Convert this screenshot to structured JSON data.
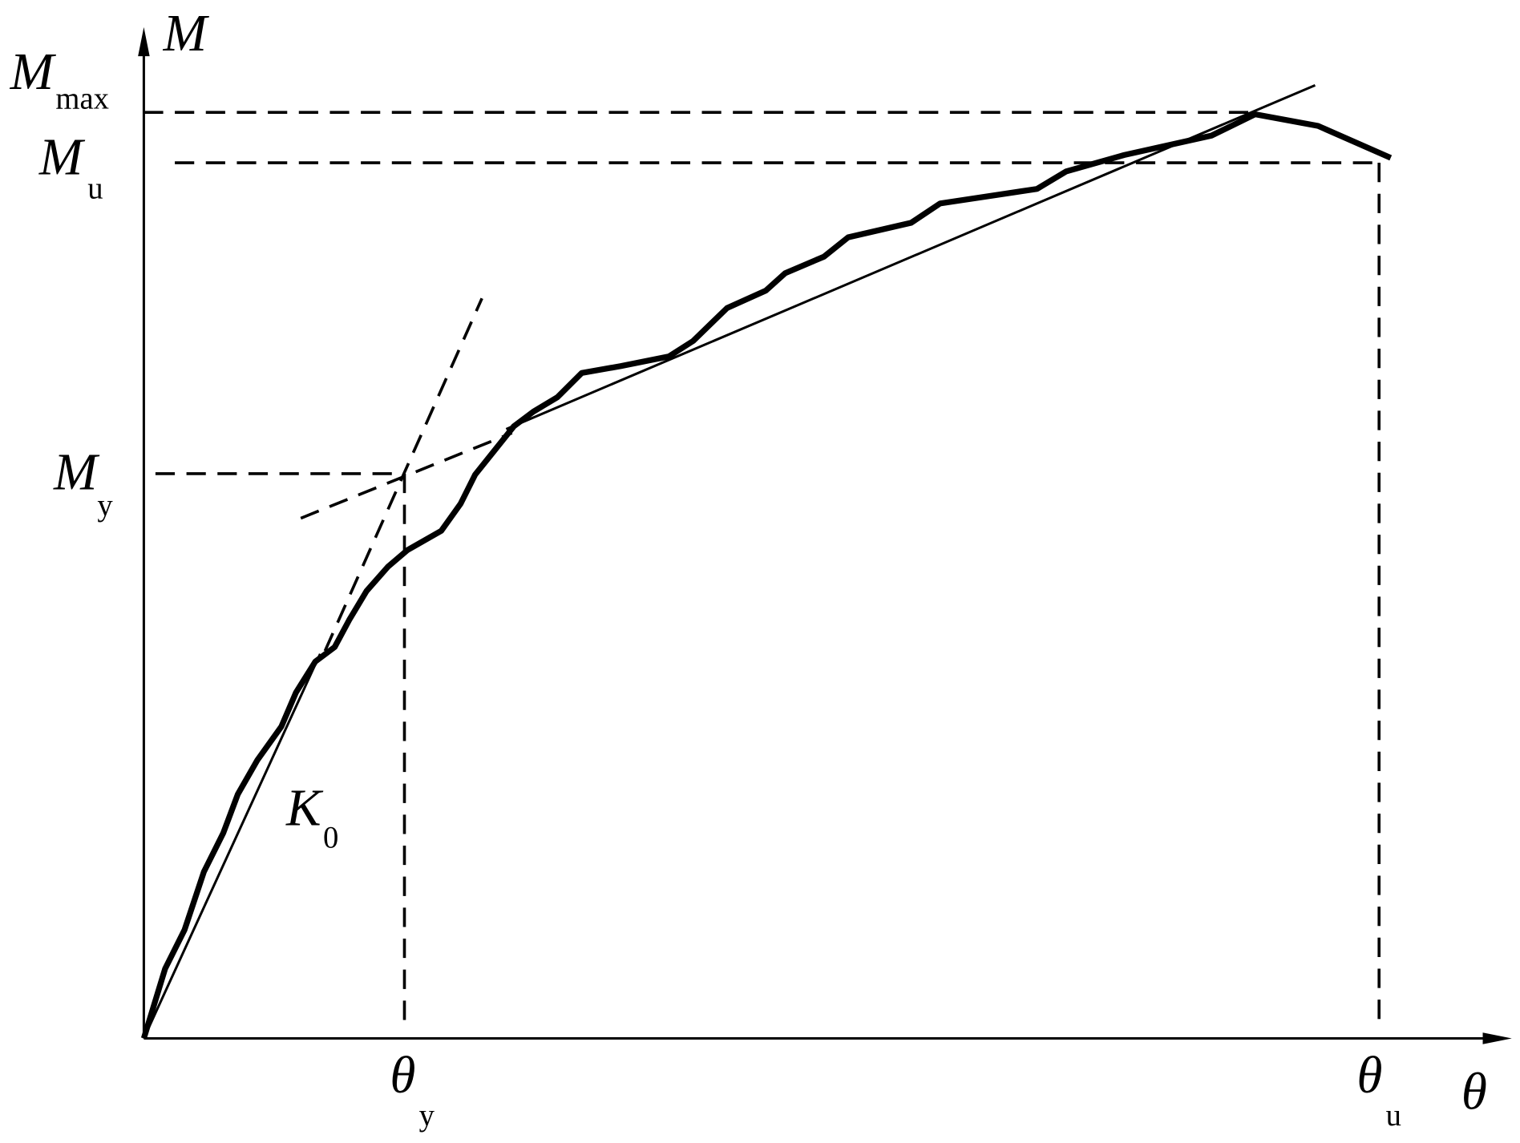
{
  "axes": {
    "y_label": "M",
    "x_label": "θ"
  },
  "labels": [
    {
      "main": "M",
      "sub": "max"
    },
    {
      "main": "M",
      "sub": "u"
    },
    {
      "main": "M",
      "sub": "y"
    },
    {
      "main": "θ",
      "sub": "y"
    },
    {
      "main": "θ",
      "sub": "u"
    },
    {
      "main": "K",
      "sub": "0"
    }
  ]
}
